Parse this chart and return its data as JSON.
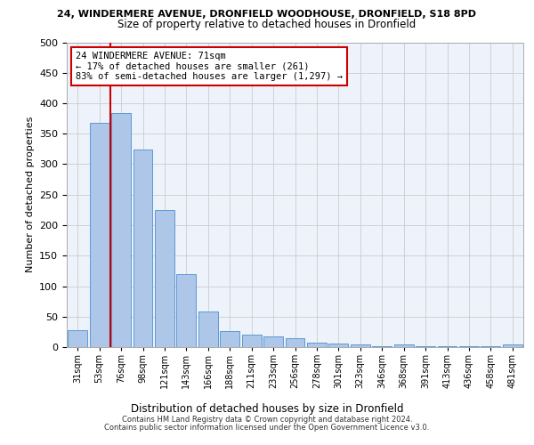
{
  "title_line1": "24, WINDERMERE AVENUE, DRONFIELD WOODHOUSE, DRONFIELD, S18 8PD",
  "title_line2": "Size of property relative to detached houses in Dronfield",
  "xlabel": "Distribution of detached houses by size in Dronfield",
  "ylabel": "Number of detached properties",
  "categories": [
    "31sqm",
    "53sqm",
    "76sqm",
    "98sqm",
    "121sqm",
    "143sqm",
    "166sqm",
    "188sqm",
    "211sqm",
    "233sqm",
    "256sqm",
    "278sqm",
    "301sqm",
    "323sqm",
    "346sqm",
    "368sqm",
    "391sqm",
    "413sqm",
    "436sqm",
    "458sqm",
    "481sqm"
  ],
  "bar_heights": [
    28,
    368,
    384,
    324,
    225,
    120,
    58,
    27,
    20,
    18,
    14,
    7,
    6,
    5,
    2,
    5,
    1,
    1,
    1,
    1,
    5
  ],
  "bar_color": "#aec6e8",
  "bar_edge_color": "#5b9bd5",
  "vline_x": 1.5,
  "annotation_text": "24 WINDERMERE AVENUE: 71sqm\n← 17% of detached houses are smaller (261)\n83% of semi-detached houses are larger (1,297) →",
  "annotation_box_color": "#ffffff",
  "annotation_box_edge": "#cc0000",
  "vline_color": "#cc0000",
  "ylim": [
    0,
    500
  ],
  "yticks": [
    0,
    50,
    100,
    150,
    200,
    250,
    300,
    350,
    400,
    450,
    500
  ],
  "grid_color": "#cccccc",
  "bg_color": "#eef2fa",
  "footer_line1": "Contains HM Land Registry data © Crown copyright and database right 2024.",
  "footer_line2": "Contains public sector information licensed under the Open Government Licence v3.0."
}
